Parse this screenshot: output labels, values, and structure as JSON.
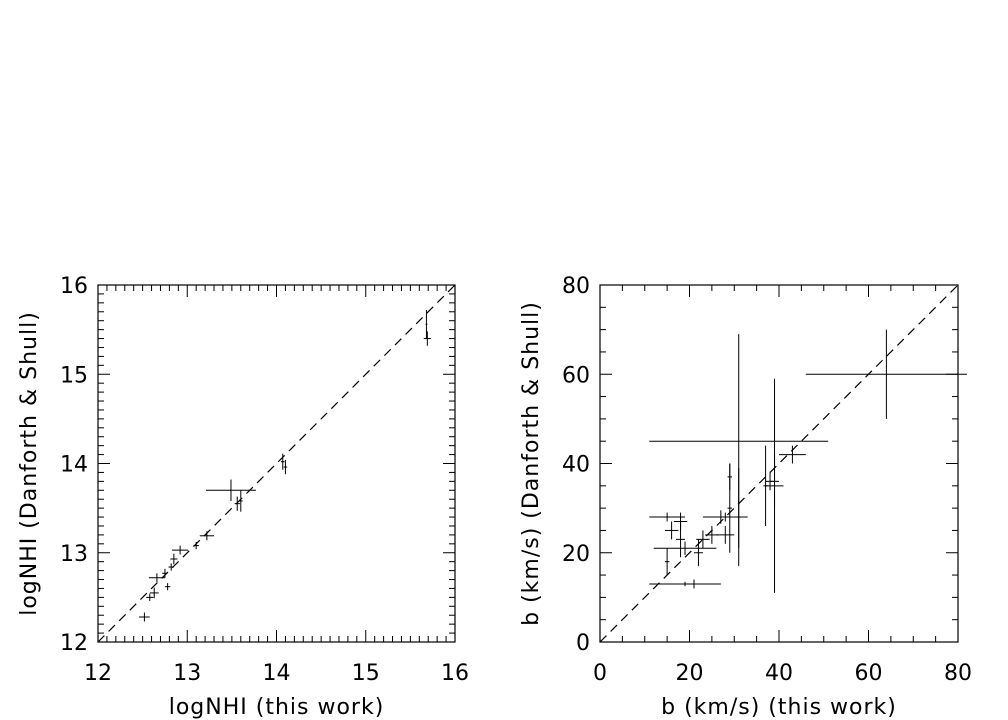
{
  "chart_data": [
    {
      "type": "scatter",
      "title": "",
      "xlabel": "logNHI (this work)",
      "ylabel": "logNHI (Danforth & Shull)",
      "xlim": [
        12,
        16
      ],
      "ylim": [
        12,
        16
      ],
      "xticks": [
        "12",
        "13",
        "14",
        "15",
        "16"
      ],
      "yticks": [
        "12",
        "13",
        "14",
        "15",
        "16"
      ],
      "reference_line": "y = x (dashed)",
      "points": [
        {
          "x": 12.52,
          "y": 12.28,
          "xerr": 0.06,
          "yerr": 0.05
        },
        {
          "x": 12.58,
          "y": 12.5,
          "xerr": 0.04,
          "yerr": 0.04
        },
        {
          "x": 12.63,
          "y": 12.55,
          "xerr": 0.05,
          "yerr": 0.06
        },
        {
          "x": 12.66,
          "y": 12.72,
          "xerr": 0.09,
          "yerr": 0.05
        },
        {
          "x": 12.78,
          "y": 12.62,
          "xerr": 0.03,
          "yerr": 0.04
        },
        {
          "x": 12.75,
          "y": 12.77,
          "xerr": 0.03,
          "yerr": 0.05
        },
        {
          "x": 12.82,
          "y": 12.84,
          "xerr": 0.03,
          "yerr": 0.04
        },
        {
          "x": 12.85,
          "y": 12.93,
          "xerr": 0.04,
          "yerr": 0.06
        },
        {
          "x": 12.92,
          "y": 13.03,
          "xerr": 0.09,
          "yerr": 0.05
        },
        {
          "x": 13.1,
          "y": 13.08,
          "xerr": 0.03,
          "yerr": 0.04
        },
        {
          "x": 13.22,
          "y": 13.19,
          "xerr": 0.08,
          "yerr": 0.05
        },
        {
          "x": 13.49,
          "y": 13.7,
          "xerr": 0.28,
          "yerr": 0.12
        },
        {
          "x": 13.56,
          "y": 13.55,
          "xerr": 0.03,
          "yerr": 0.08
        },
        {
          "x": 13.6,
          "y": 13.58,
          "xerr": 0.02,
          "yerr": 0.12
        },
        {
          "x": 14.07,
          "y": 14.02,
          "xerr": 0.02,
          "yerr": 0.09
        },
        {
          "x": 14.1,
          "y": 13.96,
          "xerr": 0.02,
          "yerr": 0.08
        },
        {
          "x": 15.68,
          "y": 15.56,
          "xerr": 0.01,
          "yerr": 0.16
        },
        {
          "x": 15.69,
          "y": 15.4,
          "xerr": 0.04,
          "yerr": 0.08
        }
      ]
    },
    {
      "type": "scatter",
      "title": "",
      "xlabel": "b (km/s) (this work)",
      "ylabel": "b (km/s) (Danforth & Shull)",
      "xlim": [
        0,
        80
      ],
      "ylim": [
        0,
        80
      ],
      "xticks": [
        "0",
        "20",
        "40",
        "60",
        "80"
      ],
      "yticks": [
        "0",
        "20",
        "40",
        "60",
        "80"
      ],
      "reference_line": "y = x (dashed)",
      "points": [
        {
          "x": 16,
          "y": 25,
          "xerr": 1.5,
          "yerr": 2
        },
        {
          "x": 15,
          "y": 28,
          "xerr": 4,
          "yerr": 1
        },
        {
          "x": 15,
          "y": 18,
          "xerr": 0.5,
          "yerr": 3
        },
        {
          "x": 18,
          "y": 27,
          "xerr": 1.5,
          "yerr": 2
        },
        {
          "x": 19,
          "y": 21,
          "xerr": 7,
          "yerr": 1.5
        },
        {
          "x": 18,
          "y": 23,
          "xerr": 1,
          "yerr": 4
        },
        {
          "x": 21,
          "y": 13,
          "xerr": 1,
          "yerr": 1
        },
        {
          "x": 22,
          "y": 20,
          "xerr": 1,
          "yerr": 3
        },
        {
          "x": 23,
          "y": 23,
          "xerr": 1.5,
          "yerr": 2
        },
        {
          "x": 25,
          "y": 24,
          "xerr": 1.5,
          "yerr": 2
        },
        {
          "x": 19,
          "y": 13,
          "xerr": 8,
          "yerr": 0.5
        },
        {
          "x": 28,
          "y": 24,
          "xerr": 2,
          "yerr": 2
        },
        {
          "x": 27,
          "y": 28,
          "xerr": 2,
          "yerr": 1.5
        },
        {
          "x": 28,
          "y": 28,
          "xerr": 5,
          "yerr": 1
        },
        {
          "x": 29,
          "y": 37,
          "xerr": 0.5,
          "yerr": 3
        },
        {
          "x": 29,
          "y": 30,
          "xerr": 0.5,
          "yerr": 10
        },
        {
          "x": 31,
          "y": 45,
          "xerr": 20,
          "yerr": 24
        },
        {
          "x": 31,
          "y": 28,
          "xerr": 0.5,
          "yerr": 11
        },
        {
          "x": 37,
          "y": 35,
          "xerr": 0.5,
          "yerr": 9
        },
        {
          "x": 38,
          "y": 36,
          "xerr": 1,
          "yerr": 2
        },
        {
          "x": 39,
          "y": 35,
          "xerr": 2,
          "yerr": 24
        },
        {
          "x": 39,
          "y": 36,
          "xerr": 1,
          "yerr": 6
        },
        {
          "x": 43,
          "y": 42,
          "xerr": 3,
          "yerr": 2
        },
        {
          "x": 64,
          "y": 60,
          "xerr": 18,
          "yerr": 10
        }
      ]
    }
  ]
}
